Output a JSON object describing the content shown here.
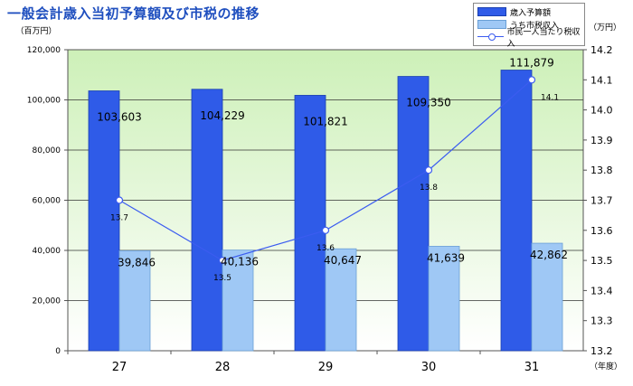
{
  "chart_data": {
    "type": "bar+line",
    "title": "一般会計歳入当初予算額及び市税の推移",
    "categories": [
      "27",
      "28",
      "29",
      "30",
      "31"
    ],
    "xlabel": "（年度）",
    "ylabel_left": "（百万円）",
    "ylabel_right": "（万円）",
    "ylim_left": [
      0,
      120000
    ],
    "ylim_right": [
      13.2,
      14.2
    ],
    "yticks_left": [
      "0",
      "20,000",
      "40,000",
      "60,000",
      "80,000",
      "100,000",
      "120,000"
    ],
    "yticks_right": [
      "13.2",
      "13.3",
      "13.4",
      "13.5",
      "13.6",
      "13.7",
      "13.8",
      "13.9",
      "14.0",
      "14.1",
      "14.2"
    ],
    "grid": true,
    "legend_position": "top-right",
    "series": [
      {
        "name": "歳入予算額",
        "type": "bar",
        "axis": "left",
        "color": "#2f5be8",
        "values": [
          103603,
          104229,
          101821,
          109350,
          111879
        ],
        "labels": [
          "103,603",
          "104,229",
          "101,821",
          "109,350",
          "111,879"
        ]
      },
      {
        "name": "うち市税収入",
        "type": "bar",
        "axis": "left",
        "color": "#9fc8f5",
        "values": [
          39846,
          40136,
          40647,
          41639,
          42862
        ],
        "labels": [
          "39,846",
          "40,136",
          "40,647",
          "41,639",
          "42,862"
        ]
      },
      {
        "name": "市民一人当たり税収入",
        "type": "line",
        "axis": "right",
        "color": "#3b5cf0",
        "values": [
          13.7,
          13.5,
          13.6,
          13.8,
          14.1
        ],
        "labels": [
          "13.7",
          "13.5",
          "13.6",
          "13.8",
          "14.1"
        ]
      }
    ]
  }
}
